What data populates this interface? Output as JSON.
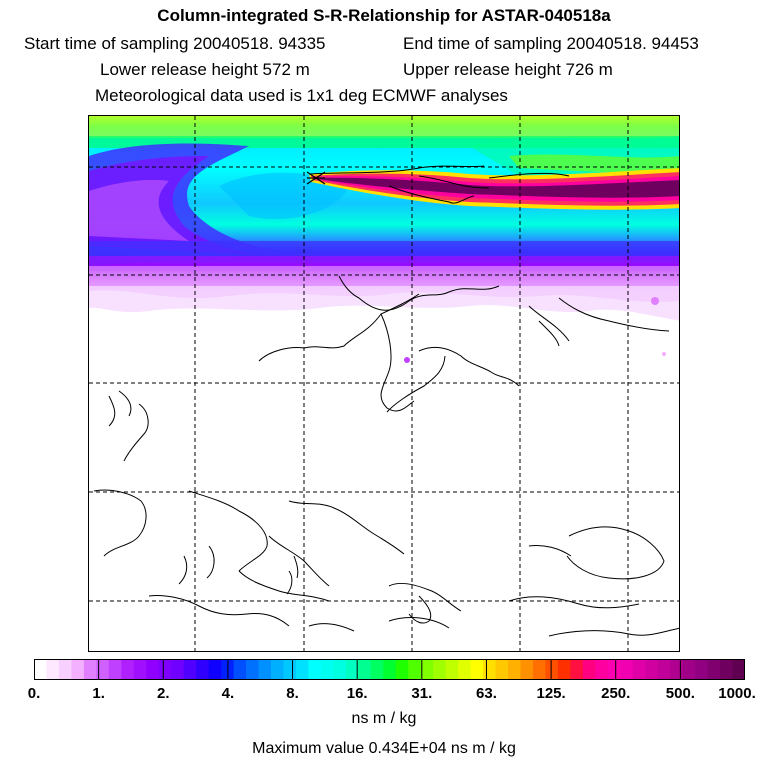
{
  "header": {
    "title": "Column-integrated S-R-Relationship for ASTAR-040518a",
    "start_label": "Start time of sampling 20040518. 94335",
    "end_label": "End time of sampling 20040518. 94453",
    "lower_label": "Lower release height  572 m",
    "upper_label": "Upper release height  726 m",
    "met_label": "Meteorological data used is 1x1 deg ECMWF analyses"
  },
  "colorbar": {
    "tick_labels": [
      "0.",
      "1.",
      "2.",
      "4.",
      "8.",
      "16.",
      "31.",
      "63.",
      "125.",
      "250.",
      "500.",
      "1000."
    ],
    "colors": [
      "#ffffff",
      "#fde8ff",
      "#f8d0ff",
      "#f2b0ff",
      "#e080ff",
      "#d060ff",
      "#c040ff",
      "#b020ff",
      "#a010ff",
      "#9000ff",
      "#8000ff",
      "#7000ff",
      "#5000ff",
      "#3000ff",
      "#1000ff",
      "#0020ff",
      "#0050ff",
      "#0070ff",
      "#0090ff",
      "#00b0ff",
      "#00c8ff",
      "#00e0ff",
      "#00ffff",
      "#00fff0",
      "#00ffe0",
      "#00ffc0",
      "#00ff90",
      "#00ff60",
      "#00ff30",
      "#20ff00",
      "#50ff00",
      "#80ff00",
      "#a0ff00",
      "#c0ff00",
      "#e0ff00",
      "#ffff00",
      "#ffe000",
      "#ffc800",
      "#ffb000",
      "#ff9000",
      "#ff7000",
      "#ff5000",
      "#ff3000",
      "#ff1040",
      "#ff0080",
      "#ff00a0",
      "#ff00b0",
      "#f000b0",
      "#e000a8",
      "#d000a0",
      "#c00098",
      "#b00090",
      "#a00088",
      "#900080",
      "#800070",
      "#700060",
      "#600050"
    ],
    "units": "ns m / kg"
  },
  "footer": {
    "max_value": "Maximum value  0.434E+04 ns m / kg"
  }
}
